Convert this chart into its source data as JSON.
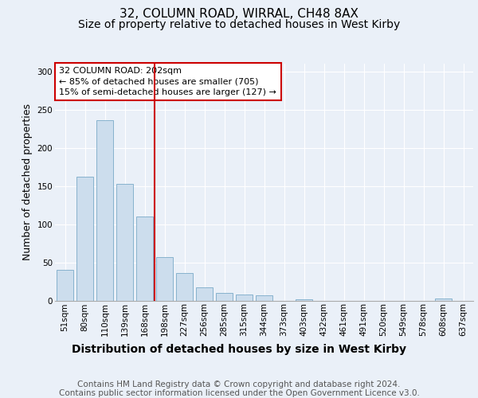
{
  "title1": "32, COLUMN ROAD, WIRRAL, CH48 8AX",
  "title2": "Size of property relative to detached houses in West Kirby",
  "xlabel": "Distribution of detached houses by size in West Kirby",
  "ylabel": "Number of detached properties",
  "categories": [
    "51sqm",
    "80sqm",
    "110sqm",
    "139sqm",
    "168sqm",
    "198sqm",
    "227sqm",
    "256sqm",
    "285sqm",
    "315sqm",
    "344sqm",
    "373sqm",
    "403sqm",
    "432sqm",
    "461sqm",
    "491sqm",
    "520sqm",
    "549sqm",
    "578sqm",
    "608sqm",
    "637sqm"
  ],
  "values": [
    40,
    162,
    236,
    153,
    110,
    57,
    36,
    17,
    10,
    8,
    7,
    0,
    2,
    0,
    0,
    0,
    0,
    0,
    0,
    3,
    0
  ],
  "bar_color": "#ccdded",
  "bar_edge_color": "#7aaac8",
  "vline_color": "#cc0000",
  "annotation_text": "32 COLUMN ROAD: 202sqm\n← 85% of detached houses are smaller (705)\n15% of semi-detached houses are larger (127) →",
  "ylim": [
    0,
    310
  ],
  "yticks": [
    0,
    50,
    100,
    150,
    200,
    250,
    300
  ],
  "background_color": "#eaf0f8",
  "plot_bg_color": "#eaf0f8",
  "footer_text": "Contains HM Land Registry data © Crown copyright and database right 2024.\nContains public sector information licensed under the Open Government Licence v3.0.",
  "grid_color": "#ffffff",
  "title1_fontsize": 11,
  "title2_fontsize": 10,
  "xlabel_fontsize": 10,
  "ylabel_fontsize": 9,
  "tick_fontsize": 7.5,
  "footer_fontsize": 7.5,
  "annotation_fontsize": 8
}
